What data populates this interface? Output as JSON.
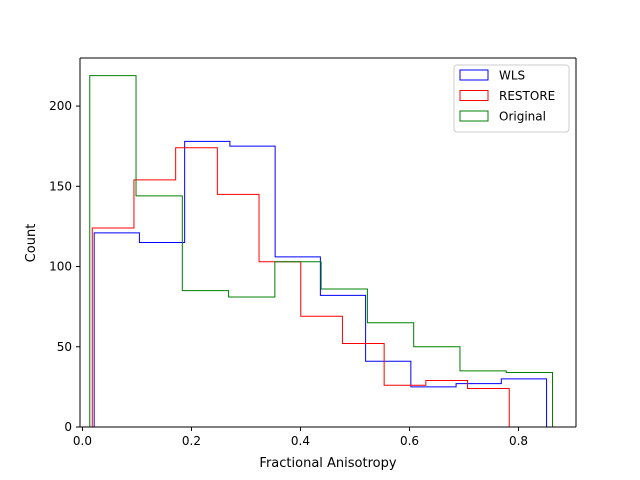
{
  "chart_data": {
    "type": "histogram-step",
    "title": "",
    "xlabel": "Fractional Anisotropy",
    "ylabel": "Count",
    "xlim": [
      -0.0045,
      0.9055
    ],
    "ylim": [
      0,
      229.95
    ],
    "xticks": [
      0.0,
      0.2,
      0.4,
      0.6,
      0.8
    ],
    "xtick_labels": [
      "0.0",
      "0.2",
      "0.4",
      "0.6",
      "0.8"
    ],
    "yticks": [
      0,
      50,
      100,
      150,
      200
    ],
    "ytick_labels": [
      "0",
      "50",
      "100",
      "150",
      "200"
    ],
    "grid": false,
    "legend_position": "top-right",
    "series": [
      {
        "name": "WLS",
        "color": "#0000ff",
        "edges": [
          0.0215,
          0.1045,
          0.1875,
          0.2705,
          0.3535,
          0.4365,
          0.5195,
          0.6025,
          0.6855,
          0.7685,
          0.8515
        ],
        "counts": [
          121,
          115,
          178,
          175,
          106,
          82,
          41,
          25,
          27,
          30
        ]
      },
      {
        "name": "RESTORE",
        "color": "#ff0000",
        "edges": [
          0.018,
          0.0945,
          0.171,
          0.2475,
          0.324,
          0.4005,
          0.477,
          0.5535,
          0.63,
          0.7065,
          0.783
        ],
        "counts": [
          124,
          154,
          174,
          145,
          103,
          69,
          52,
          26,
          29,
          24
        ]
      },
      {
        "name": "Original",
        "color": "#008000",
        "edges": [
          0.0134,
          0.0983,
          0.1832,
          0.2681,
          0.353,
          0.4379,
          0.5228,
          0.6077,
          0.6926,
          0.7775,
          0.8624
        ],
        "counts": [
          219,
          144,
          85,
          81,
          103,
          86,
          65,
          50,
          35,
          34
        ]
      }
    ]
  }
}
